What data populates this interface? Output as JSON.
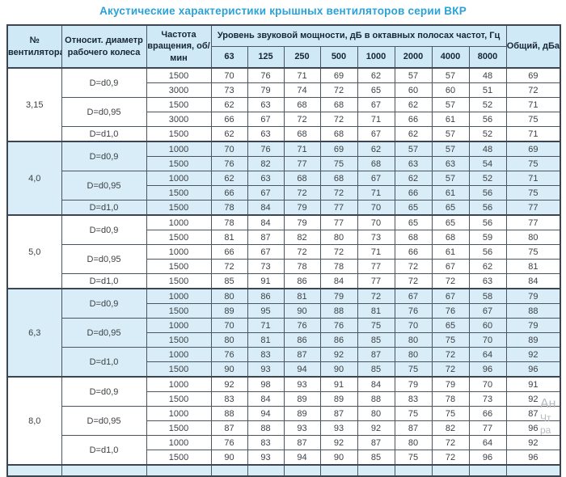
{
  "title": "Акустические характеристики крышных вентиляторов серии ВКР",
  "colors": {
    "title_blue": "#2aa2d8",
    "header_bg": "#cfe9f6",
    "shaded_row_bg": "#d8edf8",
    "border": "#4a5560",
    "text": "#3d4144"
  },
  "watermark": {
    "lines": [
      "Ан",
      "Чт",
      "ра"
    ]
  },
  "table": {
    "headers": {
      "fan": "№ вентилятора",
      "diameter": "Относит. диаметр рабочего колеса",
      "speed": "Частота вращения, об/мин",
      "octave": "Уровень звуковой мощности, дБ в октавных полосах частот, Гц",
      "freqs": [
        "63",
        "125",
        "250",
        "500",
        "1000",
        "2000",
        "4000",
        "8000"
      ],
      "total": "Общий, дБа"
    },
    "groups": [
      {
        "fan": "3,15",
        "shaded": false,
        "subgroups": [
          {
            "diameter": "D=d0,9",
            "rows": [
              {
                "rpm": "1500",
                "levels": [
                  70,
                  76,
                  71,
                  69,
                  62,
                  57,
                  57,
                  48
                ],
                "total": 69
              },
              {
                "rpm": "3000",
                "levels": [
                  73,
                  79,
                  74,
                  72,
                  65,
                  60,
                  60,
                  51
                ],
                "total": 72
              }
            ]
          },
          {
            "diameter": "D=d0,95",
            "rows": [
              {
                "rpm": "1500",
                "levels": [
                  62,
                  63,
                  68,
                  68,
                  67,
                  62,
                  57,
                  52
                ],
                "total": 71
              },
              {
                "rpm": "3000",
                "levels": [
                  66,
                  67,
                  72,
                  72,
                  71,
                  66,
                  61,
                  56
                ],
                "total": 75
              }
            ]
          },
          {
            "diameter": "D=d1,0",
            "rows": [
              {
                "rpm": "1500",
                "levels": [
                  62,
                  63,
                  68,
                  68,
                  67,
                  62,
                  57,
                  52
                ],
                "total": 71
              }
            ]
          }
        ]
      },
      {
        "fan": "4,0",
        "shaded": true,
        "subgroups": [
          {
            "diameter": "D=d0,9",
            "rows": [
              {
                "rpm": "1000",
                "levels": [
                  70,
                  76,
                  71,
                  69,
                  62,
                  57,
                  57,
                  48
                ],
                "total": 69
              },
              {
                "rpm": "1500",
                "levels": [
                  76,
                  82,
                  77,
                  75,
                  68,
                  63,
                  63,
                  54
                ],
                "total": 75
              }
            ]
          },
          {
            "diameter": "D=d0,95",
            "rows": [
              {
                "rpm": "1000",
                "levels": [
                  62,
                  63,
                  68,
                  68,
                  67,
                  62,
                  57,
                  52
                ],
                "total": 71
              },
              {
                "rpm": "1500",
                "levels": [
                  66,
                  67,
                  72,
                  72,
                  71,
                  66,
                  61,
                  56
                ],
                "total": 75
              }
            ]
          },
          {
            "diameter": "D=d1,0",
            "rows": [
              {
                "rpm": "1500",
                "levels": [
                  78,
                  84,
                  79,
                  77,
                  70,
                  65,
                  65,
                  56
                ],
                "total": 77
              }
            ]
          }
        ]
      },
      {
        "fan": "5,0",
        "shaded": false,
        "subgroups": [
          {
            "diameter": "D=d0,9",
            "rows": [
              {
                "rpm": "1000",
                "levels": [
                  78,
                  84,
                  79,
                  77,
                  70,
                  65,
                  65,
                  56
                ],
                "total": 77
              },
              {
                "rpm": "1500",
                "levels": [
                  81,
                  87,
                  82,
                  80,
                  73,
                  68,
                  68,
                  59
                ],
                "total": 80
              }
            ]
          },
          {
            "diameter": "D=d0,95",
            "rows": [
              {
                "rpm": "1000",
                "levels": [
                  66,
                  67,
                  72,
                  72,
                  71,
                  66,
                  61,
                  56
                ],
                "total": 75
              },
              {
                "rpm": "1500",
                "levels": [
                  72,
                  73,
                  78,
                  78,
                  77,
                  72,
                  67,
                  62
                ],
                "total": 81
              }
            ]
          },
          {
            "diameter": "D=d1,0",
            "rows": [
              {
                "rpm": "1500",
                "levels": [
                  85,
                  91,
                  86,
                  84,
                  77,
                  72,
                  72,
                  63
                ],
                "total": 84
              }
            ]
          }
        ]
      },
      {
        "fan": "6,3",
        "shaded": true,
        "subgroups": [
          {
            "diameter": "D=d0,9",
            "rows": [
              {
                "rpm": "1000",
                "levels": [
                  80,
                  86,
                  81,
                  79,
                  72,
                  67,
                  67,
                  58
                ],
                "total": 79
              },
              {
                "rpm": "1500",
                "levels": [
                  89,
                  95,
                  90,
                  88,
                  81,
                  76,
                  76,
                  67
                ],
                "total": 88
              }
            ]
          },
          {
            "diameter": "D=d0,95",
            "rows": [
              {
                "rpm": "1000",
                "levels": [
                  70,
                  71,
                  76,
                  76,
                  75,
                  70,
                  65,
                  60
                ],
                "total": 79
              },
              {
                "rpm": "1500",
                "levels": [
                  80,
                  81,
                  86,
                  86,
                  85,
                  80,
                  75,
                  70
                ],
                "total": 89
              }
            ]
          },
          {
            "diameter": "D=d1,0",
            "rows": [
              {
                "rpm": "1000",
                "levels": [
                  76,
                  83,
                  87,
                  92,
                  87,
                  80,
                  72,
                  64
                ],
                "total": 92
              },
              {
                "rpm": "1500",
                "levels": [
                  90,
                  93,
                  94,
                  90,
                  85,
                  75,
                  72,
                  96
                ],
                "total": 96
              }
            ]
          }
        ]
      },
      {
        "fan": "8,0",
        "shaded": false,
        "subgroups": [
          {
            "diameter": "D=d0,9",
            "rows": [
              {
                "rpm": "1000",
                "levels": [
                  92,
                  98,
                  93,
                  91,
                  84,
                  79,
                  79,
                  70
                ],
                "total": 91
              },
              {
                "rpm": "1500",
                "levels": [
                  83,
                  84,
                  89,
                  89,
                  88,
                  83,
                  78,
                  73
                ],
                "total": 92
              }
            ]
          },
          {
            "diameter": "D=d0,95",
            "rows": [
              {
                "rpm": "1000",
                "levels": [
                  88,
                  94,
                  89,
                  87,
                  80,
                  75,
                  75,
                  66
                ],
                "total": 87
              },
              {
                "rpm": "1500",
                "levels": [
                  87,
                  88,
                  93,
                  93,
                  92,
                  87,
                  82,
                  77
                ],
                "total": 96
              }
            ]
          },
          {
            "diameter": "D=d1,0",
            "rows": [
              {
                "rpm": "1000",
                "levels": [
                  76,
                  83,
                  87,
                  92,
                  87,
                  80,
                  72,
                  64
                ],
                "total": 92
              },
              {
                "rpm": "1500",
                "levels": [
                  90,
                  93,
                  94,
                  90,
                  85,
                  75,
                  72,
                  96
                ],
                "total": 96
              }
            ]
          }
        ]
      }
    ],
    "partial_next_row": {
      "shaded": true,
      "columns": 13
    }
  }
}
